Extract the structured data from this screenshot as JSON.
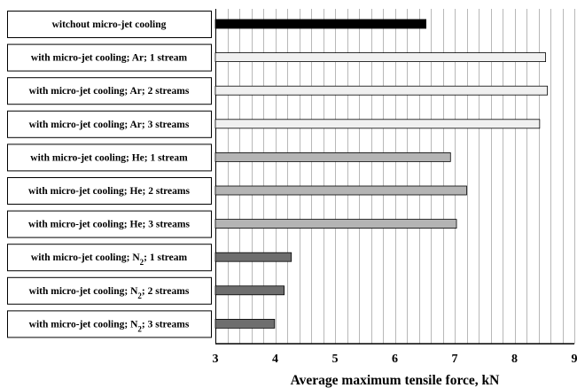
{
  "chart_data": {
    "type": "bar",
    "orientation": "horizontal",
    "categories": [
      [
        "witchout micro-jet cooling"
      ],
      [
        "with micro-jet cooling; Ar; 1 stream"
      ],
      [
        "with micro-jet cooling; Ar; 2 streams"
      ],
      [
        "with micro-jet cooling; Ar; 3 streams"
      ],
      [
        "with micro-jet cooling; He; 1 stream"
      ],
      [
        "with micro-jet cooling; He; 2 streams"
      ],
      [
        "with micro-jet cooling; He; 3 streams"
      ],
      [
        "with micro-jet cooling; N",
        "2",
        "; 1 stream"
      ],
      [
        "with micro-jet cooling; N",
        "2",
        "; 2 streams"
      ],
      [
        "with micro-jet cooling; N",
        "2",
        "; 3 streams"
      ]
    ],
    "values": [
      6.52,
      8.52,
      8.55,
      8.42,
      6.93,
      7.2,
      7.03,
      4.27,
      4.15,
      3.99
    ],
    "bar_colors": [
      "#000000",
      "#f0f0f0",
      "#f0f0f0",
      "#f0f0f0",
      "#b4b4b4",
      "#b4b4b4",
      "#b4b4b4",
      "#6e6e6e",
      "#6e6e6e",
      "#6e6e6e"
    ],
    "xlim": [
      3,
      9
    ],
    "xticks": [
      3,
      4,
      5,
      6,
      7,
      8,
      9
    ],
    "minor_step": 0.2,
    "xlabel": "Average maximum tensile force, kN",
    "grid": true
  }
}
